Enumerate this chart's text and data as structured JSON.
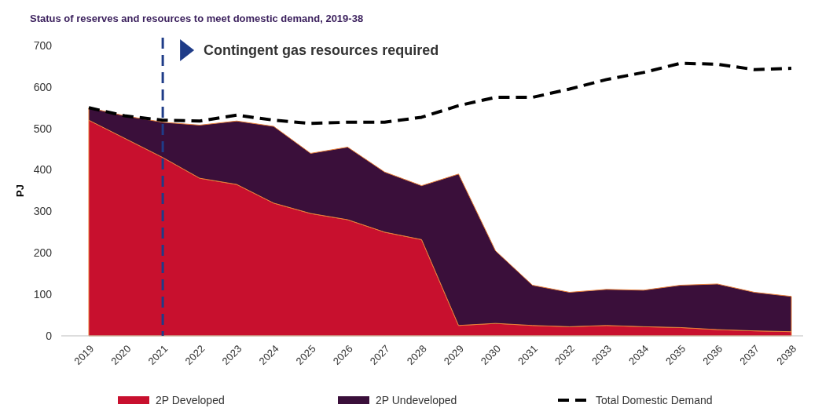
{
  "chart_data": {
    "type": "area",
    "title": "Status of reserves and resources to meet domestic demand, 2019-38",
    "ylabel": "PJ",
    "categories": [
      "2019",
      "2020",
      "2021",
      "2022",
      "2023",
      "2024",
      "2025",
      "2026",
      "2027",
      "2028",
      "2029",
      "2030",
      "2031",
      "2032",
      "2033",
      "2034",
      "2035",
      "2036",
      "2037",
      "2038"
    ],
    "stacked": true,
    "series": [
      {
        "name": "2P Developed",
        "color": "#c8102e",
        "type": "area",
        "values": [
          520,
          475,
          430,
          380,
          365,
          320,
          295,
          280,
          250,
          232,
          25,
          30,
          25,
          22,
          25,
          22,
          20,
          15,
          12,
          10
        ]
      },
      {
        "name": "2P Undeveloped",
        "color": "#3a0f3a",
        "type": "area",
        "values": [
          30,
          55,
          85,
          128,
          153,
          185,
          145,
          175,
          145,
          130,
          365,
          175,
          97,
          83,
          87,
          88,
          102,
          110,
          93,
          85
        ]
      },
      {
        "name": "Total Domestic Demand",
        "color": "#000000",
        "type": "line",
        "line_style": "dashed",
        "values": [
          550,
          530,
          520,
          518,
          532,
          520,
          512,
          515,
          515,
          527,
          555,
          575,
          575,
          595,
          618,
          635,
          657,
          655,
          642,
          645
        ]
      }
    ],
    "ylim": [
      0,
      700
    ],
    "yticks": [
      0,
      100,
      200,
      300,
      400,
      500,
      600,
      700
    ],
    "grid": false,
    "legend": "bottom",
    "ref_lines": [
      {
        "axis": "x",
        "value": "2021",
        "color": "#1f3c88",
        "line_style": "dashed"
      }
    ],
    "annotations": [
      "Contingent gas resources required"
    ]
  }
}
